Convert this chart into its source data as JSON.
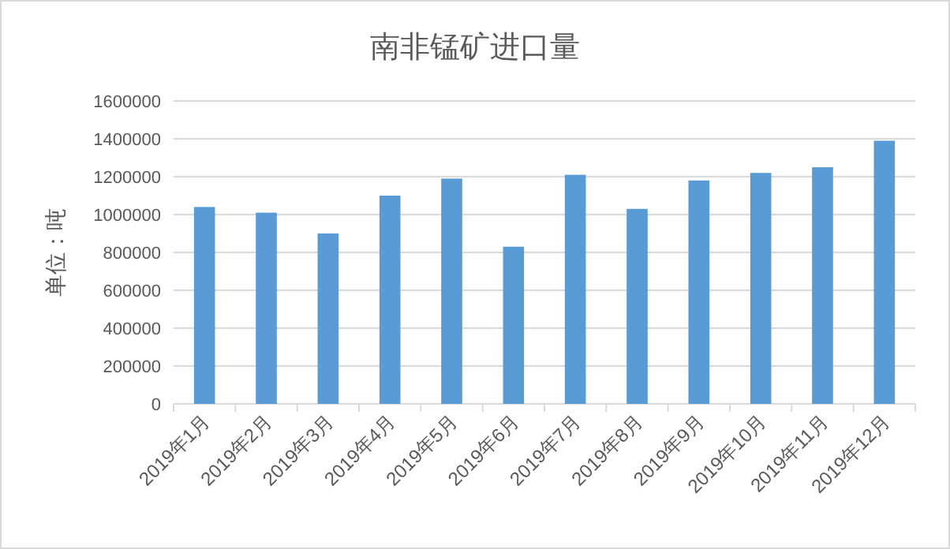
{
  "chart_data": {
    "type": "bar",
    "title": "南非锰矿进口量",
    "ylabel": "单位：吨",
    "categories": [
      "2019年1月",
      "2019年2月",
      "2019年3月",
      "2019年4月",
      "2019年5月",
      "2019年6月",
      "2019年7月",
      "2019年8月",
      "2019年9月",
      "2019年10月",
      "2019年11月",
      "2019年12月"
    ],
    "values": [
      1040000,
      1010000,
      900000,
      1100000,
      1190000,
      830000,
      1210000,
      1030000,
      1180000,
      1220000,
      1250000,
      1390000
    ],
    "color": "#5b9bd5",
    "ylim": [
      0,
      1600000
    ],
    "yticks": [
      0,
      200000,
      400000,
      600000,
      800000,
      1000000,
      1200000,
      1400000,
      1600000
    ],
    "grid": "y"
  }
}
